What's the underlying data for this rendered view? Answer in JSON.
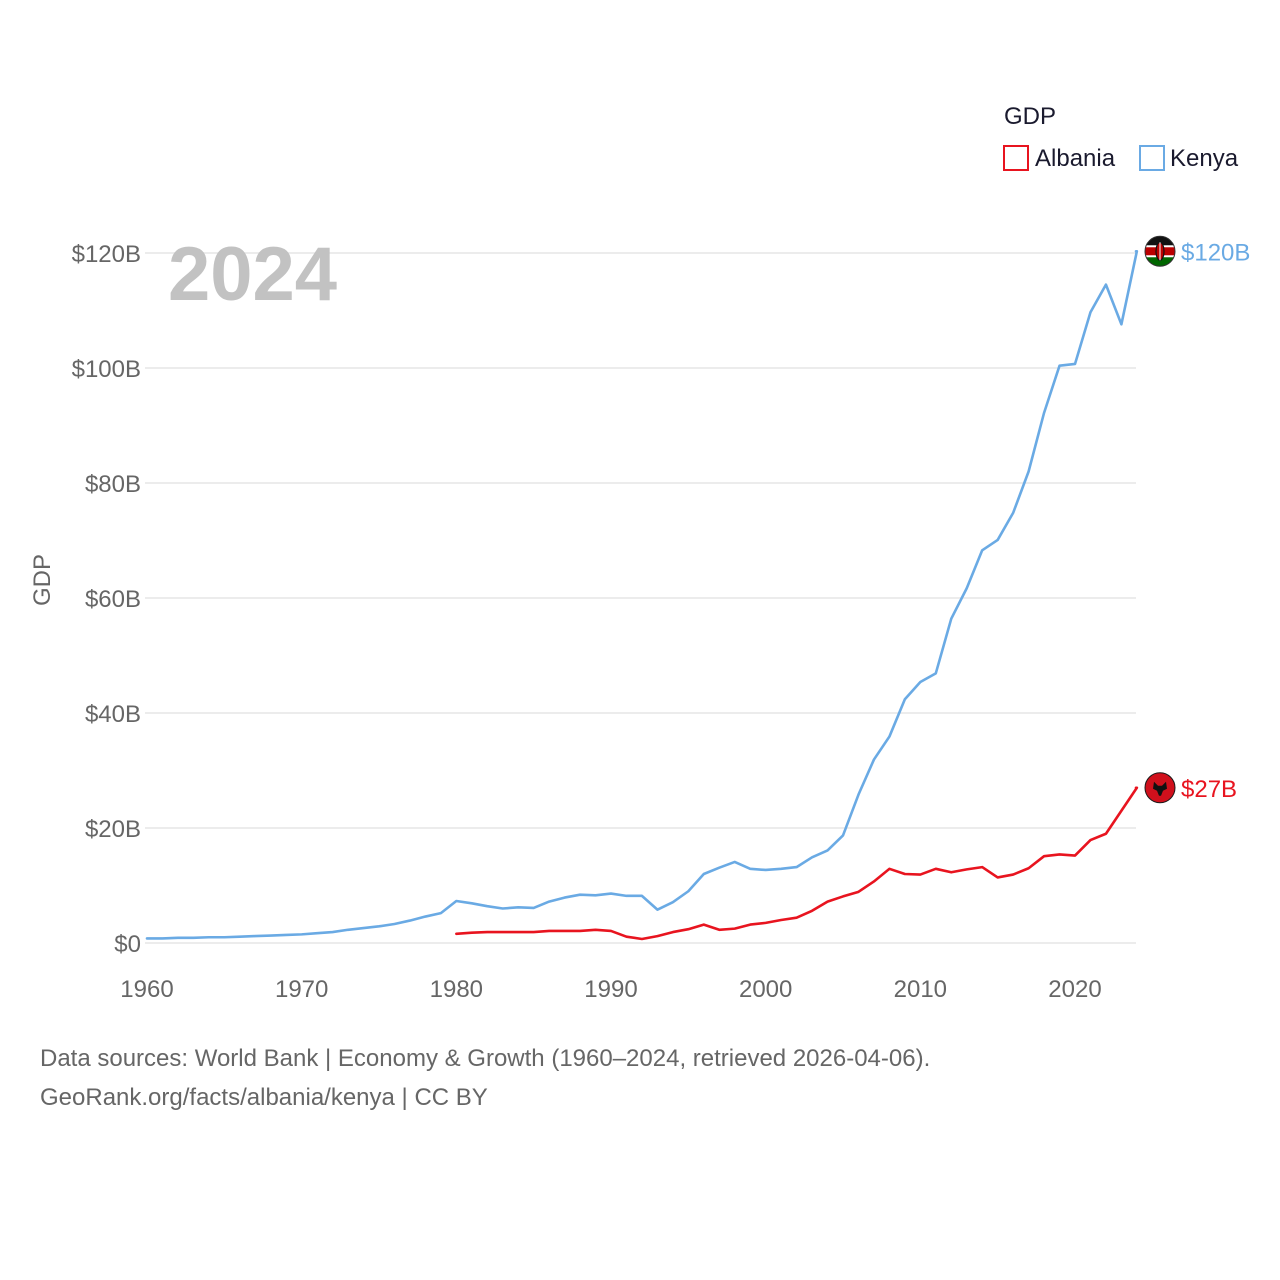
{
  "chart_data": {
    "type": "line",
    "year": "2024",
    "ylabel": "GDP",
    "xlabel": "",
    "legend_title": "GDP",
    "legend_position": "top-right",
    "xlim": [
      1960,
      2025
    ],
    "ylim": [
      0,
      120
    ],
    "x_ticks": [
      1960,
      1970,
      1980,
      1990,
      2000,
      2010,
      2020
    ],
    "x_tick_labels": [
      "1960",
      "1970",
      "1980",
      "1990",
      "2000",
      "2010",
      "2020"
    ],
    "y_ticks": [
      0,
      20,
      40,
      60,
      80,
      100,
      120
    ],
    "y_tick_labels": [
      "$0",
      "$20B",
      "$40B",
      "$60B",
      "$80B",
      "$100B",
      "$120B"
    ],
    "grid": true,
    "series": [
      {
        "name": "Albania",
        "color": "#e8141f",
        "end_label": "$27B",
        "flag_icon": "albania-flag-icon",
        "x": [
          1980,
          1981,
          1982,
          1983,
          1984,
          1985,
          1986,
          1987,
          1988,
          1989,
          1990,
          1991,
          1992,
          1993,
          1994,
          1995,
          1996,
          1997,
          1998,
          1999,
          2000,
          2001,
          2002,
          2003,
          2004,
          2005,
          2006,
          2007,
          2008,
          2009,
          2010,
          2011,
          2012,
          2013,
          2014,
          2015,
          2016,
          2017,
          2018,
          2019,
          2020,
          2021,
          2022,
          2023,
          2024
        ],
        "values": [
          1.6,
          1.8,
          1.9,
          1.9,
          1.9,
          1.9,
          2.1,
          2.1,
          2.1,
          2.3,
          2.1,
          1.1,
          0.7,
          1.2,
          1.9,
          2.4,
          3.2,
          2.3,
          2.5,
          3.2,
          3.5,
          4.0,
          4.4,
          5.6,
          7.2,
          8.1,
          8.9,
          10.7,
          12.9,
          12.0,
          11.9,
          12.9,
          12.3,
          12.8,
          13.2,
          11.4,
          11.9,
          13.0,
          15.1,
          15.4,
          15.2,
          17.9,
          19.0,
          23.0,
          27.0
        ]
      },
      {
        "name": "Kenya",
        "color": "#6aaae4",
        "end_label": "$120B",
        "flag_icon": "kenya-flag-icon",
        "x": [
          1960,
          1961,
          1962,
          1963,
          1964,
          1965,
          1966,
          1967,
          1968,
          1969,
          1970,
          1971,
          1972,
          1973,
          1974,
          1975,
          1976,
          1977,
          1978,
          1979,
          1980,
          1981,
          1982,
          1983,
          1984,
          1985,
          1986,
          1987,
          1988,
          1989,
          1990,
          1991,
          1992,
          1993,
          1994,
          1995,
          1996,
          1997,
          1998,
          1999,
          2000,
          2001,
          2002,
          2003,
          2004,
          2005,
          2006,
          2007,
          2008,
          2009,
          2010,
          2011,
          2012,
          2013,
          2014,
          2015,
          2016,
          2017,
          2018,
          2019,
          2020,
          2021,
          2022,
          2023,
          2024
        ],
        "values": [
          0.8,
          0.8,
          0.9,
          0.9,
          1.0,
          1.0,
          1.1,
          1.2,
          1.3,
          1.4,
          1.5,
          1.7,
          1.9,
          2.3,
          2.6,
          2.9,
          3.3,
          3.9,
          4.6,
          5.2,
          7.3,
          6.9,
          6.4,
          6.0,
          6.2,
          6.1,
          7.2,
          7.9,
          8.4,
          8.3,
          8.6,
          8.2,
          8.2,
          5.8,
          7.1,
          9.0,
          12.0,
          13.1,
          14.1,
          12.9,
          12.7,
          12.9,
          13.2,
          14.9,
          16.1,
          18.7,
          25.8,
          31.9,
          35.9,
          42.4,
          45.4,
          46.9,
          56.4,
          61.7,
          68.3,
          70.1,
          74.8,
          82.0,
          92.2,
          100.4,
          100.7,
          109.7,
          114.5,
          107.6,
          120.3
        ]
      }
    ]
  },
  "source": {
    "line1": "Data sources: World Bank | Economy & Growth (1960–2024, retrieved 2026-04-06).",
    "line2": "GeoRank.org/facts/albania/kenya | CC BY"
  }
}
